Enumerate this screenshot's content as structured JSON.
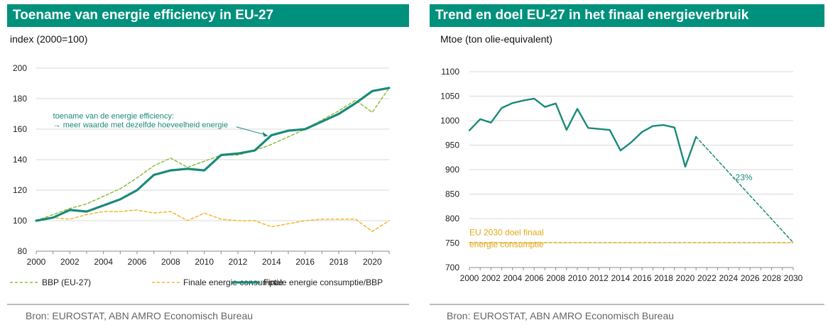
{
  "charts": {
    "left": {
      "title": "Toename van energie efficiency in EU-27",
      "unit": "index (2000=100)",
      "source": "Bron: EUROSTAT, ABN AMRO Economisch Bureau"
    },
    "right": {
      "title": "Trend en doel EU-27 in het finaal energieverbruik",
      "unit": "Mtoe (ton olie-equivalent)",
      "source": "Bron: EUROSTAT, ABN AMRO Economisch Bureau"
    }
  },
  "colors": {
    "title_bg": "#00917c",
    "teal": "#1a8a7a",
    "light_green": "#8dbf3f",
    "orange": "#f2b731",
    "grid": "#d9d9d9"
  },
  "chart_data": [
    {
      "type": "line",
      "title": "Toename van energie efficiency in EU-27",
      "ylabel": "index (2000=100)",
      "xlabel": "",
      "xlim": [
        2000,
        2021
      ],
      "ylim": [
        80,
        200
      ],
      "yticks": [
        80,
        100,
        120,
        140,
        160,
        180,
        200
      ],
      "xticks": [
        2000,
        2002,
        2004,
        2006,
        2008,
        2010,
        2012,
        2014,
        2016,
        2018,
        2020
      ],
      "grid": true,
      "legend": "bottom",
      "x": [
        2000,
        2001,
        2002,
        2003,
        2004,
        2005,
        2006,
        2007,
        2008,
        2009,
        2010,
        2011,
        2012,
        2013,
        2014,
        2015,
        2016,
        2017,
        2018,
        2019,
        2020,
        2021
      ],
      "series": [
        {
          "name": "BBP (EU-27)",
          "style": "dashed",
          "color": "#8dbf3f",
          "values": [
            100,
            104,
            108,
            111,
            116,
            121,
            128,
            136,
            141,
            135,
            139,
            143,
            143,
            146,
            150,
            155,
            160,
            166,
            172,
            179,
            171,
            187
          ]
        },
        {
          "name": "Finale energie consumptie",
          "style": "dashed",
          "color": "#f2b731",
          "values": [
            100,
            102,
            101,
            104,
            106,
            106,
            107,
            105,
            106,
            100,
            105,
            101,
            100,
            100,
            96,
            98,
            100,
            101,
            101,
            101,
            93,
            100
          ]
        },
        {
          "name": "Finale energie consumptie/BBP",
          "style": "solid",
          "color": "#1a8a7a",
          "values": [
            100,
            102,
            107,
            106,
            110,
            114,
            120,
            130,
            133,
            134,
            133,
            143,
            144,
            146,
            156,
            159,
            160,
            165,
            170,
            177,
            185,
            187
          ]
        }
      ],
      "annotations": [
        {
          "text": "toename van de energie efficiency:",
          "x": 2001.0,
          "y": 167
        },
        {
          "text": "→ meer waarde met dezelfde hoeveelheid energie",
          "x": 2001.0,
          "y": 163
        },
        {
          "arrow_from": [
            2011.9,
            161.5
          ],
          "arrow_to": [
            2013.8,
            155.5
          ]
        }
      ]
    },
    {
      "type": "line",
      "title": "Trend en doel EU-27 in het finaal energieverbruik",
      "ylabel": "Mtoe (ton olie-equivalent)",
      "xlabel": "",
      "xlim": [
        2000,
        2030
      ],
      "ylim": [
        700,
        1100
      ],
      "yticks": [
        700,
        750,
        800,
        850,
        900,
        950,
        1000,
        1050,
        1100
      ],
      "xticks": [
        2000,
        2002,
        2004,
        2006,
        2008,
        2010,
        2012,
        2014,
        2016,
        2018,
        2020,
        2022,
        2024,
        2026,
        2028,
        2030
      ],
      "grid": true,
      "legend": "none",
      "x": [
        2000,
        2001,
        2002,
        2003,
        2004,
        2005,
        2006,
        2007,
        2008,
        2009,
        2010,
        2011,
        2012,
        2013,
        2014,
        2015,
        2016,
        2017,
        2018,
        2019,
        2020,
        2021
      ],
      "series": [
        {
          "name": "",
          "style": "solid",
          "color": "#1a8a7a",
          "values": [
            980,
            1003,
            996,
            1026,
            1036,
            1041,
            1045,
            1028,
            1035,
            981,
            1024,
            985,
            983,
            981,
            939,
            956,
            977,
            989,
            991,
            986,
            906,
            967
          ]
        },
        {
          "name": "",
          "style": "dashed",
          "color": "#1a8a7a",
          "x": [
            2021,
            2030
          ],
          "values": [
            967,
            751
          ]
        },
        {
          "name": "",
          "style": "dashed",
          "color": "#f2b731",
          "x": [
            2000,
            2030
          ],
          "values": [
            751,
            751
          ]
        }
      ],
      "annotations": [
        {
          "text": "-23%",
          "x": 2025.3,
          "y": 878
        },
        {
          "text": "EU 2030 doel finaal",
          "x": 2000,
          "y": 766
        },
        {
          "text": "energie consumptie",
          "x": 2000,
          "y": 741
        }
      ]
    }
  ]
}
